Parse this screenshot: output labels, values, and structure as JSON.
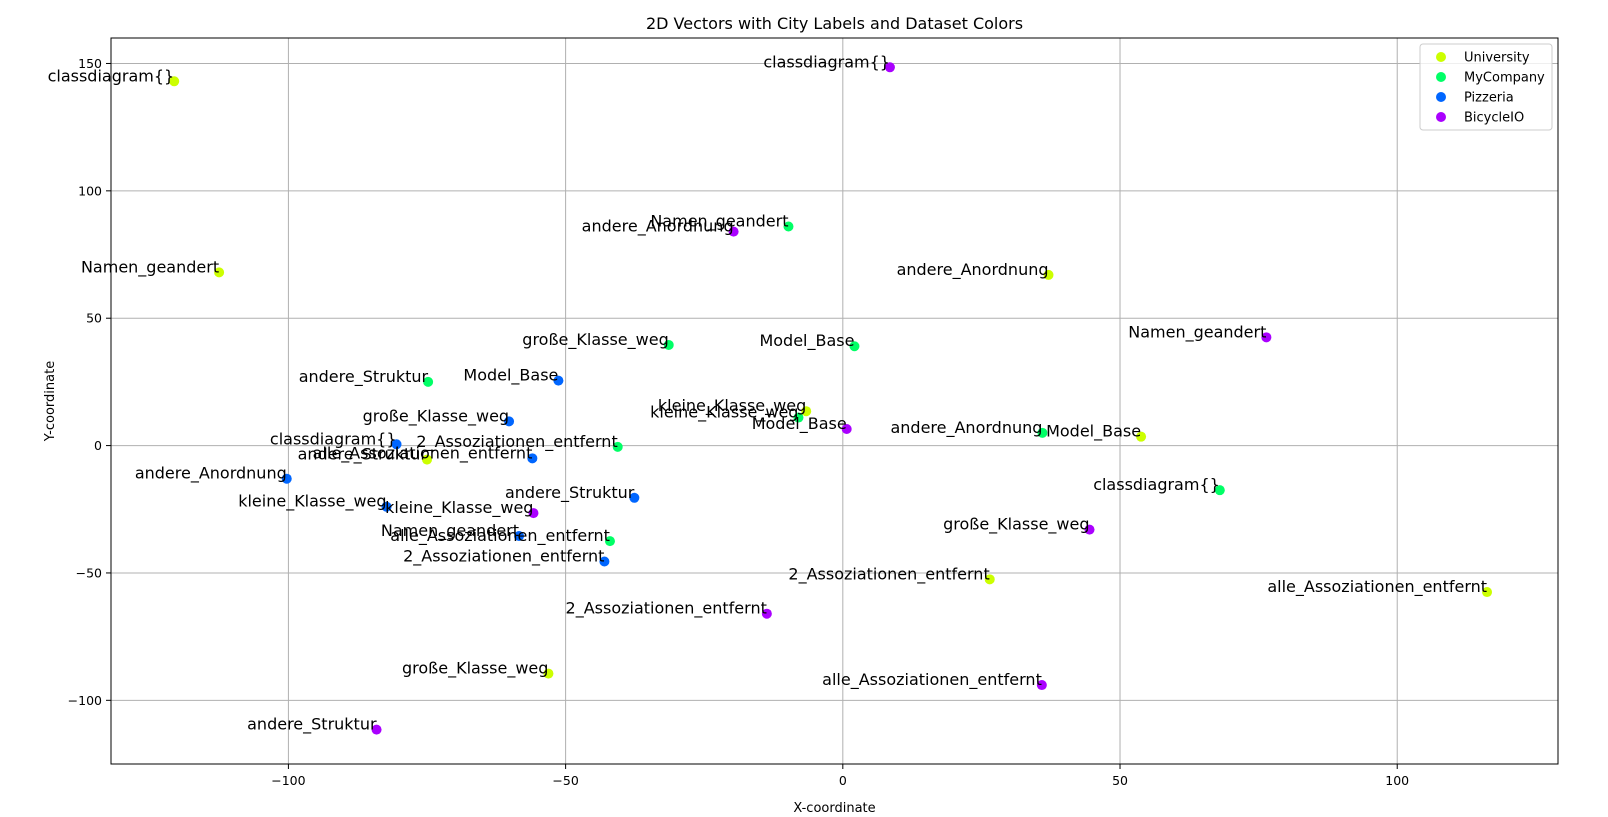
{
  "chart_data": {
    "type": "scatter",
    "title": "2D Vectors with City Labels and Dataset Colors",
    "xlabel": "X-coordinate",
    "ylabel": "Y-coordinate",
    "xlim": [
      -132,
      129
    ],
    "ylim": [
      -125,
      160
    ],
    "xticks": [
      -100,
      -50,
      0,
      50,
      100
    ],
    "yticks": [
      -100,
      -50,
      0,
      50,
      100,
      150
    ],
    "xtick_labels": [
      "−100",
      "−50",
      "0",
      "50",
      "100"
    ],
    "ytick_labels": [
      "−100",
      "−50",
      "0",
      "50",
      "100",
      "150"
    ],
    "grid": true,
    "legend_position": "top-right",
    "series": [
      {
        "name": "University",
        "color": "#ccff00",
        "points": [
          {
            "x": -120.6,
            "y": 143.0,
            "label": "classdiagram{}"
          },
          {
            "x": -112.5,
            "y": 68.0,
            "label": "Namen_geandert"
          },
          {
            "x": 37.1,
            "y": 67.0,
            "label": "andere_Anordnung"
          },
          {
            "x": 53.8,
            "y": 3.5,
            "label": "Model_Base"
          },
          {
            "x": -6.6,
            "y": 13.5,
            "label": "kleine_Klasse_weg"
          },
          {
            "x": -75.0,
            "y": -5.5,
            "label": "andere_Struktur"
          },
          {
            "x": 26.5,
            "y": -52.5,
            "label": "2_Assoziationen_entfernt"
          },
          {
            "x": 116.2,
            "y": -57.5,
            "label": "alle_Assoziationen_entfernt"
          },
          {
            "x": -53.1,
            "y": -89.5,
            "label": "große_Klasse_weg"
          }
        ]
      },
      {
        "name": "MyCompany",
        "color": "#00ff66",
        "points": [
          {
            "x": -9.8,
            "y": 86.0,
            "label": "Namen_geandert"
          },
          {
            "x": -31.4,
            "y": 39.5,
            "label": "große_Klasse_weg"
          },
          {
            "x": 2.1,
            "y": 39.0,
            "label": "Model_Base"
          },
          {
            "x": -74.8,
            "y": 25.0,
            "label": "andere_Struktur"
          },
          {
            "x": -8.0,
            "y": 11.0,
            "label": "kleine_Klasse_weg"
          },
          {
            "x": 36.0,
            "y": 5.0,
            "label": "andere_Anordnung"
          },
          {
            "x": -40.6,
            "y": -0.5,
            "label": "2_Assoziationen_entfernt"
          },
          {
            "x": 68.0,
            "y": -17.5,
            "label": "classdiagram{}"
          },
          {
            "x": -42.0,
            "y": -37.5,
            "label": "alle_Assoziationen_entfernt"
          }
        ]
      },
      {
        "name": "Pizzeria",
        "color": "#0066ff",
        "points": [
          {
            "x": -51.3,
            "y": 25.5,
            "label": "Model_Base"
          },
          {
            "x": -60.2,
            "y": 9.5,
            "label": "große_Klasse_weg"
          },
          {
            "x": -80.5,
            "y": 0.5,
            "label": "classdiagram{}"
          },
          {
            "x": -56.0,
            "y": -5.0,
            "label": "alle_Assoziationen_entfernt"
          },
          {
            "x": -100.3,
            "y": -13.0,
            "label": "andere_Anordnung"
          },
          {
            "x": -37.6,
            "y": -20.5,
            "label": "andere_Struktur"
          },
          {
            "x": -82.3,
            "y": -24.0,
            "label": "kleine_Klasse_weg"
          },
          {
            "x": -58.4,
            "y": -35.5,
            "label": "Namen_geandert"
          },
          {
            "x": -43.0,
            "y": -45.5,
            "label": "2_Assoziationen_entfernt"
          }
        ]
      },
      {
        "name": "BicycleIO",
        "color": "#aa00ff",
        "points": [
          {
            "x": 8.5,
            "y": 148.5,
            "label": "classdiagram{}"
          },
          {
            "x": -19.7,
            "y": 84.0,
            "label": "andere_Anordnung"
          },
          {
            "x": 76.4,
            "y": 42.5,
            "label": "Namen_geandert"
          },
          {
            "x": 0.7,
            "y": 6.5,
            "label": "Model_Base"
          },
          {
            "x": -55.8,
            "y": -26.5,
            "label": "kleine_Klasse_weg"
          },
          {
            "x": 44.5,
            "y": -33.0,
            "label": "große_Klasse_weg"
          },
          {
            "x": -13.7,
            "y": -66.0,
            "label": "2_Assoziationen_entfernt"
          },
          {
            "x": 35.9,
            "y": -94.0,
            "label": "alle_Assoziationen_entfernt"
          },
          {
            "x": -84.1,
            "y": -111.5,
            "label": "andere_Struktur"
          }
        ]
      }
    ]
  }
}
